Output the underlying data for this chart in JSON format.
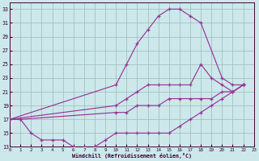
{
  "xlabel": "Windchill (Refroidissement éolien,°C)",
  "bg_color": "#cce8ea",
  "line_color": "#993399",
  "grid_color": "#99bbbb",
  "xlim": [
    0,
    23
  ],
  "ylim": [
    13,
    34
  ],
  "xticks": [
    0,
    1,
    2,
    3,
    4,
    5,
    6,
    7,
    8,
    9,
    10,
    11,
    12,
    13,
    14,
    15,
    16,
    17,
    18,
    19,
    20,
    21,
    22,
    23
  ],
  "yticks": [
    13,
    15,
    17,
    19,
    21,
    23,
    25,
    27,
    29,
    31,
    33
  ],
  "lines": [
    {
      "x": [
        0,
        10,
        11,
        12,
        13,
        14,
        15,
        16,
        17,
        18,
        20,
        21,
        22
      ],
      "y": [
        17,
        22,
        25,
        28,
        30,
        32,
        33,
        33,
        32,
        31,
        23,
        22,
        22
      ]
    },
    {
      "x": [
        0,
        10,
        11,
        12,
        13,
        14,
        15,
        16,
        17,
        18,
        19,
        20,
        21,
        22
      ],
      "y": [
        17,
        19,
        20,
        21,
        22,
        22,
        22,
        22,
        22,
        25,
        23,
        22,
        21,
        22
      ]
    },
    {
      "x": [
        0,
        1,
        10,
        11,
        12,
        13,
        14,
        15,
        16,
        17,
        18,
        19,
        20,
        21,
        22
      ],
      "y": [
        17,
        17,
        18,
        18,
        19,
        19,
        19,
        20,
        20,
        20,
        20,
        20,
        21,
        21,
        22
      ]
    },
    {
      "x": [
        0,
        1,
        2,
        3,
        4,
        5,
        6,
        7,
        8,
        9,
        10,
        11,
        12,
        13,
        14,
        15,
        16,
        17,
        18,
        19,
        20,
        21,
        22
      ],
      "y": [
        17,
        17,
        15,
        14,
        14,
        14,
        13,
        13,
        13,
        14,
        15,
        15,
        15,
        15,
        15,
        15,
        16,
        17,
        18,
        19,
        20,
        21,
        22
      ]
    }
  ]
}
